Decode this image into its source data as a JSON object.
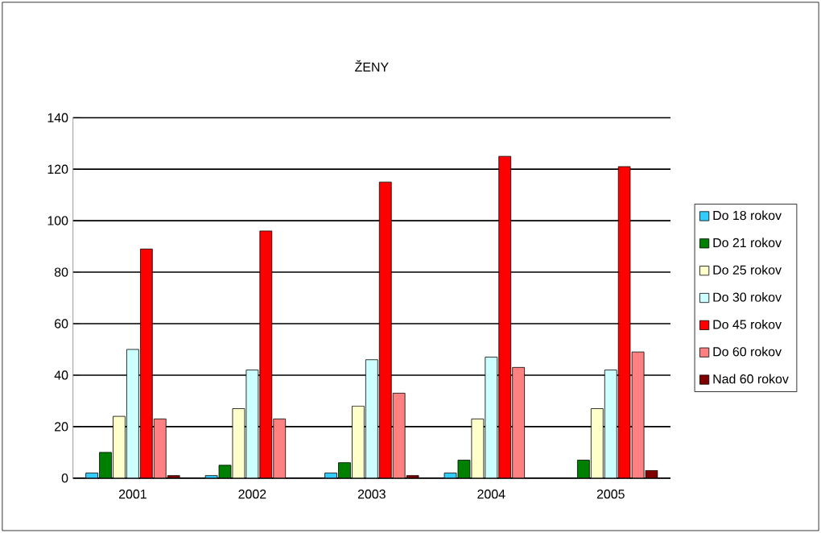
{
  "chart_data": {
    "type": "bar",
    "title": "ŽENY",
    "categories": [
      "2001",
      "2002",
      "2003",
      "2004",
      "2005"
    ],
    "series": [
      {
        "name": "Do 18 rokov",
        "color": "#33ccff",
        "values": [
          2,
          1,
          2,
          2,
          0
        ]
      },
      {
        "name": "Do 21 rokov",
        "color": "#008000",
        "values": [
          10,
          5,
          6,
          7,
          7
        ]
      },
      {
        "name": "Do 25 rokov",
        "color": "#ffffcc",
        "values": [
          24,
          27,
          28,
          23,
          27
        ]
      },
      {
        "name": "Do 30 rokov",
        "color": "#ccffff",
        "values": [
          50,
          42,
          46,
          47,
          42
        ]
      },
      {
        "name": "Do 45 rokov",
        "color": "#ff0000",
        "values": [
          89,
          96,
          115,
          125,
          121
        ]
      },
      {
        "name": "Do 60 rokov",
        "color": "#ff8080",
        "values": [
          23,
          23,
          33,
          43,
          49
        ]
      },
      {
        "name": "Nad 60 rokov",
        "color": "#800000",
        "values": [
          1,
          0,
          1,
          0,
          3
        ]
      }
    ],
    "ylim": [
      0,
      140
    ],
    "yticks": [
      0,
      20,
      40,
      60,
      80,
      100,
      120,
      140
    ],
    "grid": "y",
    "legend": "right"
  }
}
